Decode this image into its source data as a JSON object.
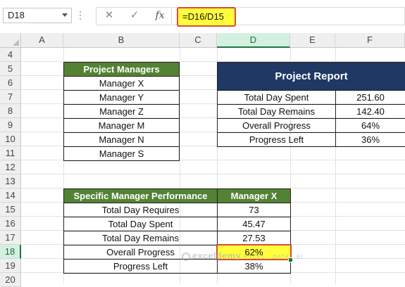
{
  "formula_bar": {
    "name_box": "D18",
    "cancel_symbol": "✕",
    "enter_symbol": "✓",
    "fx_symbol": "fx",
    "formula": "=D16/D15"
  },
  "columns": [
    "A",
    "B",
    "C",
    "D",
    "E",
    "F"
  ],
  "selected_column": "D",
  "rows": [
    "4",
    "5",
    "6",
    "7",
    "8",
    "9",
    "10",
    "11",
    "12",
    "13",
    "14",
    "15",
    "16",
    "17",
    "18",
    "19",
    "20"
  ],
  "selected_row": "18",
  "managers_table": {
    "header": "Project Managers",
    "items": [
      "Manager X",
      "Manager Y",
      "Manager Z",
      "Manager M",
      "Manager N",
      "Manager S"
    ]
  },
  "project_report": {
    "title": "Project Report",
    "rows": [
      {
        "label": "Total Day Spent",
        "value": "251.60"
      },
      {
        "label": "Total Day Remains",
        "value": "142.40"
      },
      {
        "label": "Overall Progress",
        "value": "64%"
      },
      {
        "label": "Progress Left",
        "value": "36%"
      }
    ]
  },
  "performance_table": {
    "header_label": "Specific Manager Performance",
    "header_value": "Manager X",
    "rows": [
      {
        "label": "Total Day Requires",
        "value": "73"
      },
      {
        "label": "Total Day Spent",
        "value": "45.47"
      },
      {
        "label": "Total Day Remains",
        "value": "27.53"
      },
      {
        "label": "Overall Progress",
        "value": "62%"
      },
      {
        "label": "Progress Left",
        "value": "38%"
      }
    ]
  },
  "watermark": {
    "name": "exceldemy",
    "tagline": "EXCEL · DATA · BI"
  },
  "colors": {
    "green_header": "#548235",
    "navy_header": "#1f3864",
    "highlight": "#ffff3c",
    "red_outline": "#d94a3a",
    "selection_green": "#217346"
  }
}
